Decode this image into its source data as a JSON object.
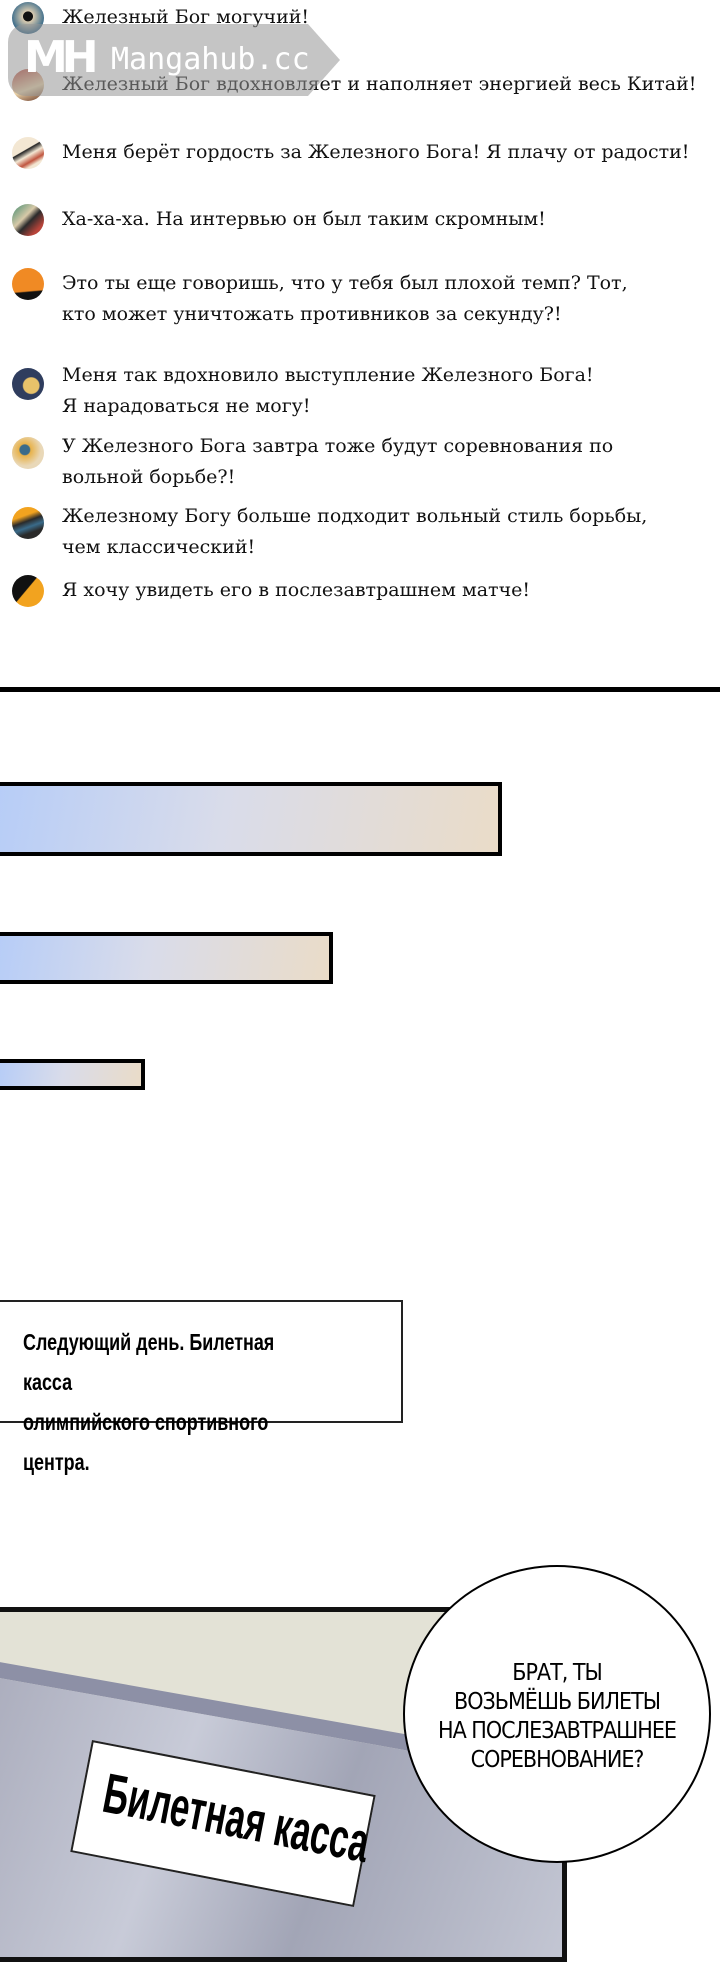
{
  "comments": [
    {
      "text": "Железный Бог могучий!",
      "avatar_color": "#3a6b8a"
    },
    {
      "text": "Железный Бог вдохновляет и наполняет энергией весь Китай!",
      "avatar_color": "#b8443a"
    },
    {
      "text": "Меня берёт гордость за Железного Бога! Я плачу от радости!",
      "avatar_color": "#e9d8b8"
    },
    {
      "text": "Ха-ха-ха. На интервью он был таким скромным!",
      "avatar_color": "#3f8a6e"
    },
    {
      "text": "Это ты еще говоришь, что у тебя был плохой темп? Тот,\nкто может уничтожать противников за секунду?!",
      "avatar_color": "#f08a24"
    },
    {
      "text": "Меня так вдохновило выступление Железного Бога!\nЯ нарадоваться не могу!",
      "avatar_color": "#2f3d5e"
    },
    {
      "text": "У Железного Бога завтра тоже будут соревнования по\nвольной борьбе?!",
      "avatar_color": "#e8b24a"
    },
    {
      "text": "Железному Богу больше подходит вольный стиль борьбы,\nчем классический!",
      "avatar_color": "#2a2a2a"
    },
    {
      "text": "Я хочу увидеть его в послезавтрашнем матче!",
      "avatar_color": "#f2a31f"
    }
  ],
  "watermark": {
    "logo": "MH",
    "text": "Mangahub.cc"
  },
  "caption": "Следующий день. Билетная касса\nолимпийского спортивного центра.",
  "sign": "Билетная касса",
  "speech_bubble": "БРАТ, ТЫ\nВОЗЬМЁШЬ БИЛЕТЫ\nНА ПОСЛЕЗАВТРАШНЕЕ\nСОРЕВНОВАНИЕ?"
}
